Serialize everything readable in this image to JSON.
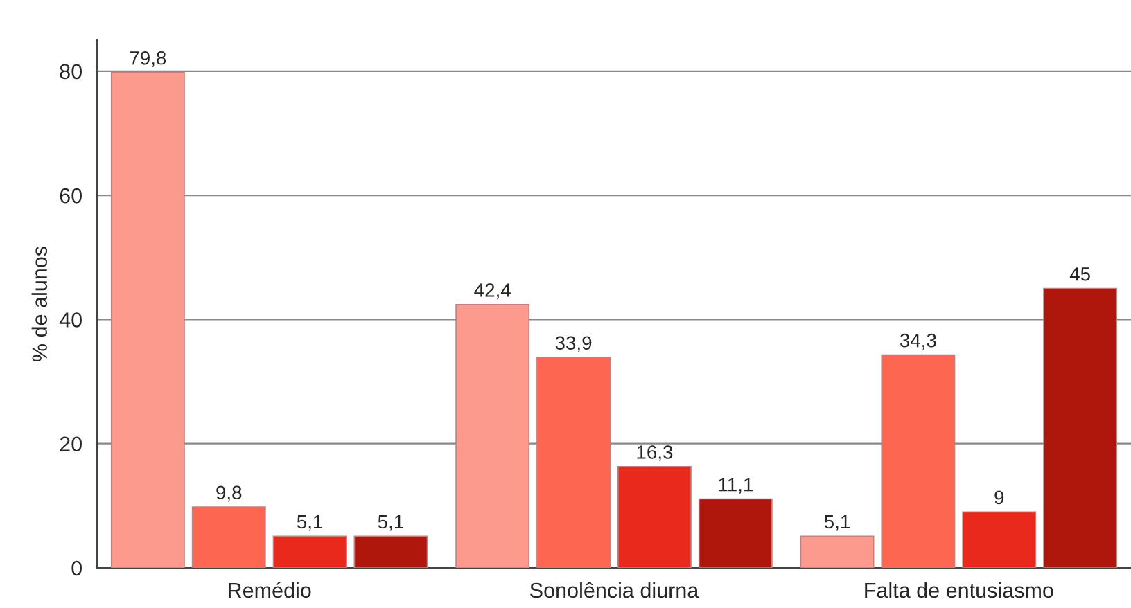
{
  "chart_data": {
    "type": "bar",
    "ylabel": "% de alunos",
    "categories": [
      "Remédio",
      "Sonolência diurna",
      "Falta de entusiasmo"
    ],
    "series": [
      {
        "color": "#fd9a8e",
        "values": [
          79.8,
          42.4,
          5.1
        ],
        "value_labels": [
          "79,8",
          "42,4",
          "5,1"
        ]
      },
      {
        "color": "#fd6650",
        "values": [
          9.8,
          33.9,
          34.3
        ],
        "value_labels": [
          "9,8",
          "33,9",
          "34,3"
        ]
      },
      {
        "color": "#e8291b",
        "values": [
          5.1,
          16.3,
          9
        ],
        "value_labels": [
          "5,1",
          "16,3",
          "9"
        ]
      },
      {
        "color": "#b0170c",
        "values": [
          5.1,
          11.1,
          45
        ],
        "value_labels": [
          "5,1",
          "11,1",
          "45"
        ]
      }
    ],
    "ylim": [
      0,
      85
    ],
    "yticks": [
      0,
      20,
      40,
      60,
      80
    ],
    "grid": "y"
  }
}
